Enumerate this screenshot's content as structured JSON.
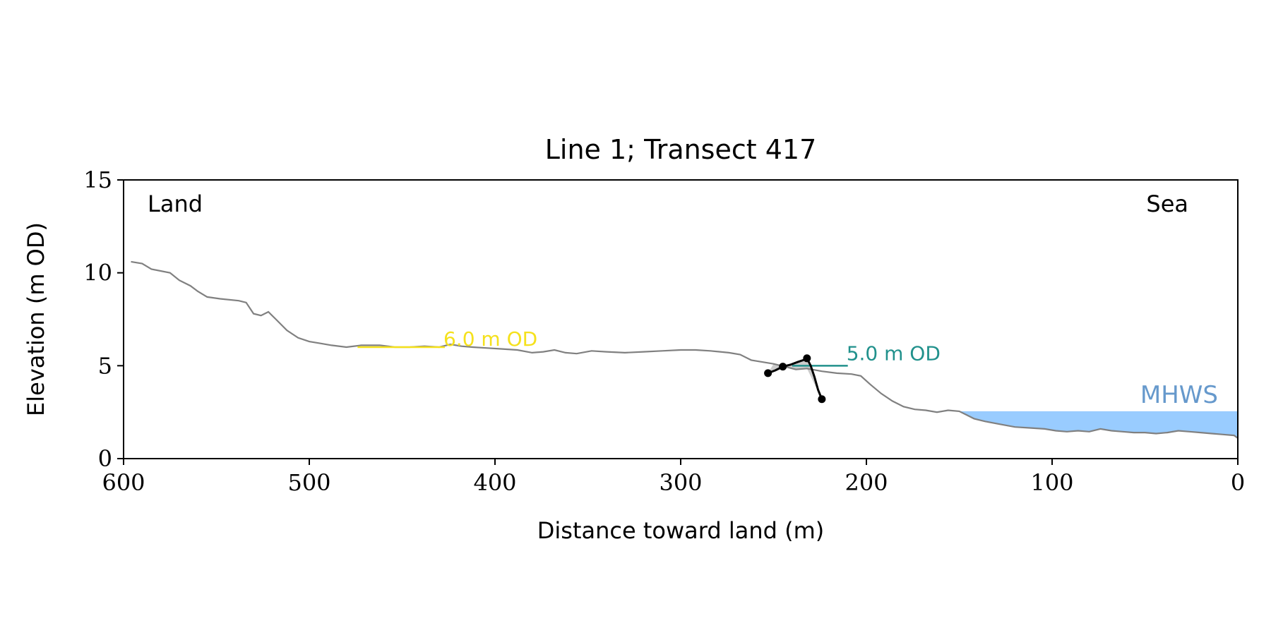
{
  "chart_data": {
    "type": "line",
    "title": "Line 1; Transect 417",
    "xlabel": "Distance toward land (m)",
    "ylabel": "Elevation (m OD)",
    "xlim": [
      600,
      0
    ],
    "ylim": [
      0,
      15
    ],
    "x_reversed": true,
    "grid": false,
    "xticks": [
      600,
      500,
      400,
      300,
      200,
      100,
      0
    ],
    "yticks": [
      0,
      5,
      10,
      15
    ],
    "corner_labels": {
      "left": "Land",
      "right": "Sea"
    },
    "colors": {
      "profile": "#808080",
      "cliff": "#000000",
      "six_m": "#f5e11c",
      "five_m": "#21918c",
      "mhws_fill": "#99ccff",
      "mhws_text": "#6699cc",
      "wedge": "#cccccc"
    },
    "profile": [
      [
        596,
        10.6
      ],
      [
        590,
        10.5
      ],
      [
        585,
        10.2
      ],
      [
        575,
        10.0
      ],
      [
        570,
        9.6
      ],
      [
        564,
        9.3
      ],
      [
        560,
        9.0
      ],
      [
        555,
        8.7
      ],
      [
        548,
        8.6
      ],
      [
        538,
        8.5
      ],
      [
        534,
        8.4
      ],
      [
        530,
        7.8
      ],
      [
        526,
        7.7
      ],
      [
        522,
        7.9
      ],
      [
        518,
        7.5
      ],
      [
        512,
        6.9
      ],
      [
        506,
        6.5
      ],
      [
        500,
        6.3
      ],
      [
        494,
        6.2
      ],
      [
        488,
        6.1
      ],
      [
        480,
        6.0
      ],
      [
        472,
        6.1
      ],
      [
        462,
        6.1
      ],
      [
        454,
        6.0
      ],
      [
        446,
        6.0
      ],
      [
        438,
        6.05
      ],
      [
        430,
        6.0
      ],
      [
        424,
        6.15
      ],
      [
        418,
        6.05
      ],
      [
        412,
        6.0
      ],
      [
        404,
        5.95
      ],
      [
        396,
        5.9
      ],
      [
        388,
        5.85
      ],
      [
        380,
        5.7
      ],
      [
        374,
        5.75
      ],
      [
        368,
        5.85
      ],
      [
        362,
        5.7
      ],
      [
        356,
        5.65
      ],
      [
        348,
        5.8
      ],
      [
        340,
        5.75
      ],
      [
        330,
        5.7
      ],
      [
        320,
        5.75
      ],
      [
        310,
        5.8
      ],
      [
        300,
        5.85
      ],
      [
        292,
        5.85
      ],
      [
        284,
        5.8
      ],
      [
        274,
        5.7
      ],
      [
        268,
        5.6
      ],
      [
        262,
        5.3
      ],
      [
        256,
        5.2
      ],
      [
        250,
        5.1
      ],
      [
        244,
        4.95
      ],
      [
        238,
        4.8
      ],
      [
        232,
        4.85
      ],
      [
        224,
        4.7
      ],
      [
        216,
        4.6
      ],
      [
        208,
        4.55
      ],
      [
        203,
        4.45
      ],
      [
        198,
        4.0
      ],
      [
        192,
        3.5
      ],
      [
        186,
        3.1
      ],
      [
        180,
        2.8
      ],
      [
        174,
        2.65
      ],
      [
        168,
        2.6
      ],
      [
        162,
        2.5
      ],
      [
        156,
        2.6
      ],
      [
        150,
        2.55
      ],
      [
        146,
        2.35
      ],
      [
        142,
        2.15
      ],
      [
        136,
        2.0
      ],
      [
        128,
        1.85
      ],
      [
        120,
        1.7
      ],
      [
        112,
        1.65
      ],
      [
        104,
        1.6
      ],
      [
        98,
        1.5
      ],
      [
        92,
        1.45
      ],
      [
        86,
        1.5
      ],
      [
        80,
        1.45
      ],
      [
        74,
        1.6
      ],
      [
        68,
        1.5
      ],
      [
        62,
        1.45
      ],
      [
        56,
        1.4
      ],
      [
        50,
        1.4
      ],
      [
        44,
        1.35
      ],
      [
        38,
        1.4
      ],
      [
        32,
        1.5
      ],
      [
        26,
        1.45
      ],
      [
        20,
        1.4
      ],
      [
        14,
        1.35
      ],
      [
        8,
        1.3
      ],
      [
        2,
        1.25
      ],
      [
        0,
        1.1
      ]
    ],
    "cliff_line": [
      [
        253,
        4.6
      ],
      [
        249,
        4.75
      ],
      [
        245,
        4.95
      ],
      [
        241,
        5.05
      ],
      [
        237,
        5.2
      ],
      [
        234,
        5.3
      ],
      [
        232,
        5.4
      ],
      [
        230,
        5.0
      ],
      [
        228,
        4.4
      ],
      [
        226,
        3.7
      ],
      [
        224,
        3.2
      ]
    ],
    "cliff_points": [
      [
        253,
        4.6
      ],
      [
        245,
        4.95
      ],
      [
        232,
        5.4
      ],
      [
        224,
        3.2
      ]
    ],
    "six_m_od": {
      "label": "6.0 m OD",
      "x_from": 474,
      "x_to": 427,
      "y": 6.0
    },
    "five_m_od": {
      "label": "5.0 m OD",
      "x_from": 240,
      "x_to": 210,
      "y": 5.0
    },
    "mhws": {
      "label": "MHWS",
      "level": 2.55,
      "x_start": 199,
      "x_end": 0
    }
  }
}
